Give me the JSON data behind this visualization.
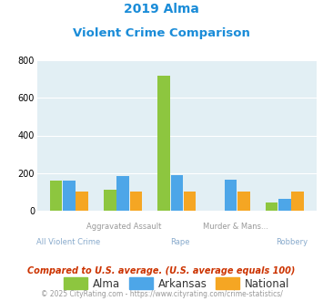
{
  "title_line1": "2019 Alma",
  "title_line2": "Violent Crime Comparison",
  "categories_top": [
    "",
    "Aggravated Assault",
    "",
    "Murder & Mans...",
    ""
  ],
  "categories_bot": [
    "All Violent Crime",
    "",
    "Rape",
    "",
    "Robbery"
  ],
  "alma_values": [
    160,
    110,
    720,
    0,
    45
  ],
  "arkansas_values": [
    160,
    185,
    190,
    165,
    65
  ],
  "national_values": [
    100,
    100,
    100,
    100,
    100
  ],
  "alma_color": "#8dc63f",
  "arkansas_color": "#4da6e8",
  "national_color": "#f5a623",
  "bg_color": "#e2eff4",
  "title_color": "#1a8cd8",
  "xlabel_top_color": "#999999",
  "xlabel_bot_color": "#88aacc",
  "footnote1_color": "#cc3300",
  "footnote2_color": "#999999",
  "ylim": [
    0,
    800
  ],
  "yticks": [
    0,
    200,
    400,
    600,
    800
  ],
  "footnote1": "Compared to U.S. average. (U.S. average equals 100)",
  "footnote2": "© 2025 CityRating.com - https://www.cityrating.com/crime-statistics/",
  "legend_labels": [
    "Alma",
    "Arkansas",
    "National"
  ]
}
